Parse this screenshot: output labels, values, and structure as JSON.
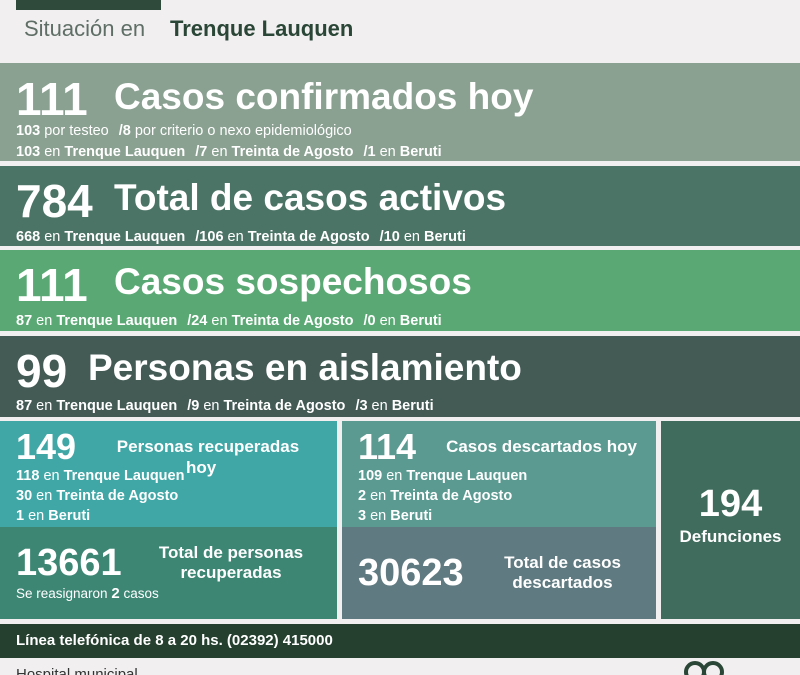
{
  "header": {
    "situacion": "Situación en",
    "city": "Trenque Lauquen"
  },
  "confirmados": {
    "count": "111",
    "title": "Casos confirmados hoy",
    "breakdown_a": {
      "n1": "103",
      "t1": "por testeo",
      "n2": "/8",
      "t2": "por criterio o nexo epidemiológico"
    },
    "by_city": {
      "tl_n": "103",
      "ta_n": "/7",
      "be_n": "/1"
    }
  },
  "activos": {
    "count": "784",
    "title": "Total de casos activos",
    "by_city": {
      "tl_n": "668",
      "ta_n": "/106",
      "be_n": "/10"
    }
  },
  "sospechosos": {
    "count": "111",
    "title": "Casos sospechosos",
    "by_city": {
      "tl_n": "87",
      "ta_n": "/24",
      "be_n": "/0"
    }
  },
  "aislamiento": {
    "count": "99",
    "title": "Personas en aislamiento",
    "by_city": {
      "tl_n": "87",
      "ta_n": "/9",
      "be_n": "/3"
    }
  },
  "labels": {
    "en": "en",
    "tl": "Trenque Lauquen",
    "ta": "Treinta de Agosto",
    "be": "Beruti"
  },
  "recuperados_hoy": {
    "count": "149",
    "title_l1": "Personas recuperadas",
    "title_l2": "hoy",
    "tl_n": "118",
    "ta_n": "30",
    "be_n": "1"
  },
  "recuperados_total": {
    "count": "13661",
    "title_l1": "Total de personas",
    "title_l2": "recuperadas",
    "note_a": "Se reasignaron",
    "note_n": "2",
    "note_b": "casos"
  },
  "descartados_hoy": {
    "count": "114",
    "title": "Casos descartados hoy",
    "tl_n": "109",
    "ta_n": "2",
    "be_n": "3"
  },
  "descartados_total": {
    "count": "30623",
    "title_l1": "Total de casos",
    "title_l2": "descartados"
  },
  "defunciones": {
    "count": "194",
    "label": "Defunciones"
  },
  "phone": {
    "text": "Línea telefónica de 8 a 20 hs. (02392) 415000"
  },
  "footer": {
    "hospital": "Hospital municipal"
  },
  "colors": {
    "confirmados": "#8aa091",
    "activos": "#4c7466",
    "sospechosos": "#5aa974",
    "aislamiento": "#435a55",
    "recuperados": "#41a7a6",
    "defunciones": "#3f6c5d",
    "phone_bar": "#25402f"
  }
}
